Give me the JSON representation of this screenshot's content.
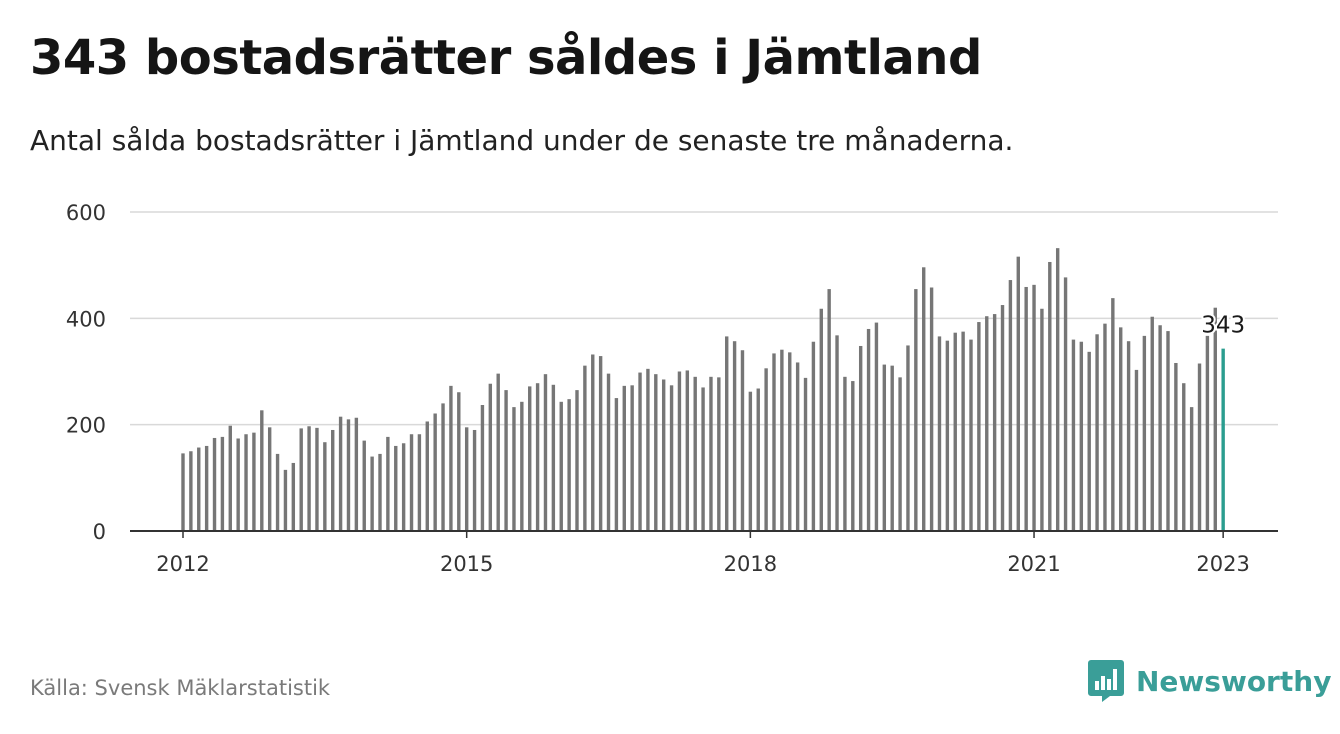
{
  "header": {
    "title": "343 bostadsrätter såldes i Jämtland",
    "subtitle": "Antal sålda bostadsrätter i Jämtland under de senaste tre månaderna."
  },
  "footer": {
    "source": "Källa: Svensk Mäklarstatistik",
    "brand_name": "Newsworthy",
    "brand_icon": "bar-chart-speech-icon"
  },
  "colors": {
    "bar": "#767676",
    "highlight": "#2a9d8f",
    "brand": "#3a9e98",
    "grid": "#d9d9d9",
    "axis": "#333333"
  },
  "chart_data": {
    "type": "bar",
    "x_label": "",
    "y_label": "",
    "x_start": "2012-01",
    "x_tick_labels": [
      "2012",
      "2015",
      "2018",
      "2021",
      "2023"
    ],
    "x_tick_years": [
      2012,
      2015,
      2018,
      2021,
      2023
    ],
    "y_ticks": [
      0,
      200,
      400,
      600
    ],
    "ylim": [
      0,
      600
    ],
    "grid": true,
    "highlight_last": true,
    "highlight_label": "343",
    "values": [
      146,
      150,
      157,
      160,
      175,
      177,
      198,
      174,
      182,
      185,
      227,
      195,
      145,
      115,
      128,
      193,
      197,
      194,
      167,
      190,
      215,
      210,
      213,
      170,
      140,
      145,
      177,
      160,
      165,
      182,
      182,
      206,
      221,
      240,
      273,
      261,
      195,
      190,
      237,
      277,
      296,
      265,
      233,
      243,
      272,
      278,
      295,
      275,
      243,
      248,
      265,
      311,
      332,
      329,
      296,
      250,
      273,
      274,
      298,
      305,
      295,
      285,
      274,
      300,
      302,
      290,
      270,
      290,
      289,
      366,
      357,
      340,
      262,
      268,
      306,
      334,
      341,
      336,
      317,
      288,
      356,
      418,
      455,
      368,
      290,
      282,
      348,
      380,
      392,
      313,
      311,
      289,
      349,
      455,
      496,
      458,
      366,
      358,
      373,
      375,
      360,
      393,
      404,
      408,
      425,
      472,
      516,
      459,
      463,
      418,
      506,
      532,
      477,
      360,
      356,
      337,
      370,
      390,
      438,
      383,
      357,
      303,
      367,
      403,
      387,
      376,
      316,
      278,
      233,
      315,
      367,
      420,
      343
    ]
  }
}
